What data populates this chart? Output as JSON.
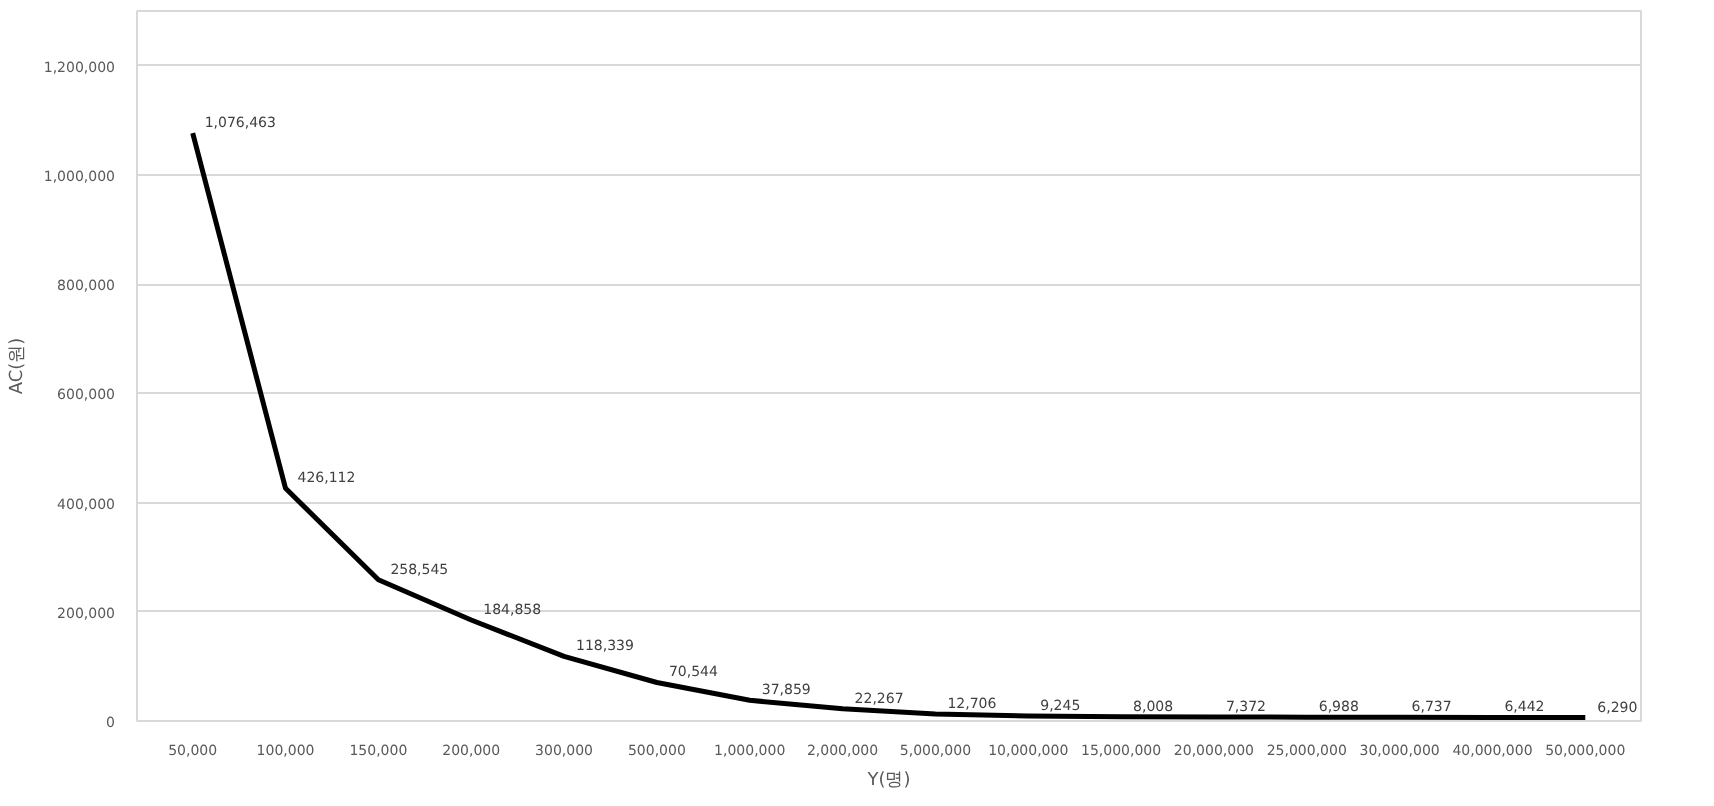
{
  "chart_data": {
    "type": "line",
    "xlabel": "Y(명)",
    "ylabel": "AC(원)",
    "categories": [
      "50,000",
      "100,000",
      "150,000",
      "200,000",
      "300,000",
      "500,000",
      "1,000,000",
      "2,000,000",
      "5,000,000",
      "10,000,000",
      "15,000,000",
      "20,000,000",
      "25,000,000",
      "30,000,000",
      "40,000,000",
      "50,000,000"
    ],
    "series": [
      {
        "color": "#000000",
        "values": [
          1076463,
          426112,
          258545,
          184858,
          118339,
          70544,
          37859,
          22267,
          12706,
          9245,
          8008,
          7372,
          6988,
          6737,
          6442,
          6290
        ],
        "value_labels": [
          "1,076,463",
          "426,112",
          "258,545",
          "184,858",
          "118,339",
          "70,544",
          "37,859",
          "22,267",
          "12,706",
          "9,245",
          "8,008",
          "7,372",
          "6,988",
          "6,737",
          "6,442",
          "6,290"
        ]
      }
    ],
    "ylim": [
      0,
      1300000
    ],
    "yticks": [
      0,
      {
        "value": 200000,
        "label": "200,000"
      },
      {
        "value": 400000,
        "label": "400,000"
      },
      {
        "value": 600000,
        "label": "600,000"
      },
      {
        "value": 800000,
        "label": "800,000"
      },
      {
        "value": 1000000,
        "label": "1,000,000"
      },
      {
        "value": 1200000,
        "label": "1,200,000"
      }
    ],
    "grid": "y",
    "marker": "none",
    "line_style": "solid"
  }
}
